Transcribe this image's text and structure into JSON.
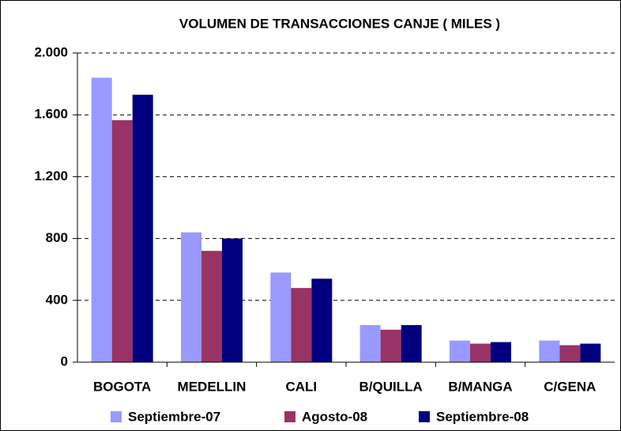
{
  "chart_data": {
    "type": "bar",
    "title": "VOLUMEN DE TRANSACCIONES CANJE ( MILES )",
    "categories": [
      "BOGOTA",
      "MEDELLIN",
      "CALI",
      "B/QUILLA",
      "B/MANGA",
      "C/GENA"
    ],
    "series": [
      {
        "name": "Septiembre-07",
        "color": "#9999ff",
        "values": [
          1840,
          840,
          580,
          240,
          140,
          140
        ]
      },
      {
        "name": "Agosto-08",
        "color": "#993366",
        "values": [
          1565,
          720,
          480,
          210,
          120,
          110
        ]
      },
      {
        "name": "Septiembre-08",
        "color": "#000080",
        "values": [
          1730,
          800,
          540,
          240,
          130,
          120
        ]
      }
    ],
    "ylim": [
      0,
      2000
    ],
    "yticks": [
      0,
      400,
      800,
      {
        "value": 1200,
        "label": "1.200"
      },
      {
        "value": 1600,
        "label": "1.600"
      },
      {
        "value": 2000,
        "label": "2.000"
      }
    ],
    "grid": true,
    "legend": "bottom"
  }
}
